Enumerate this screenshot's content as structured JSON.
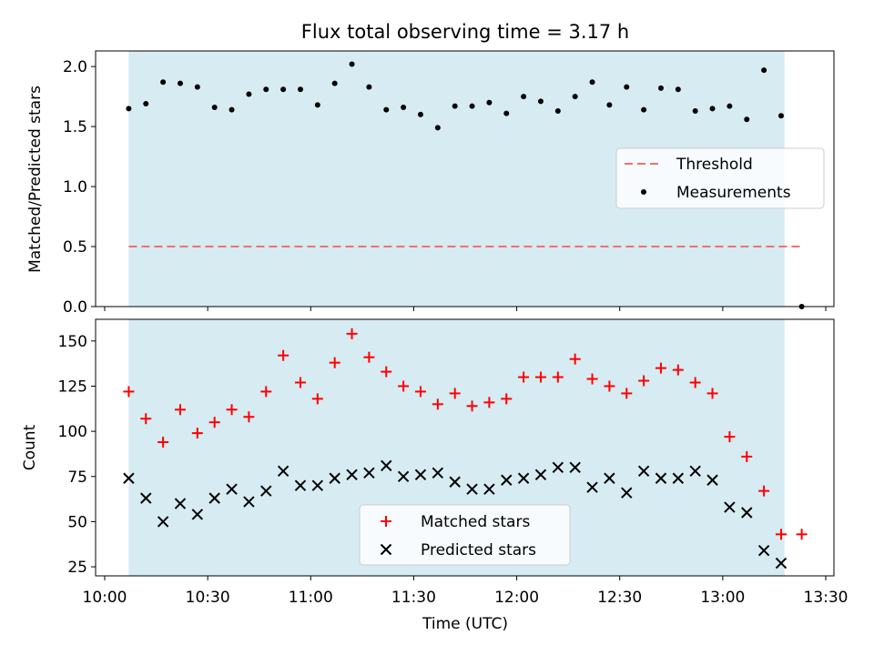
{
  "chart_data": [
    {
      "type": "scatter",
      "title": "Flux total observing time = 3.17 h",
      "xlabel": "",
      "ylabel": "Matched/Predicted stars",
      "ylim": [
        0.0,
        2.13
      ],
      "yticks": [
        0.0,
        0.5,
        1.0,
        1.5,
        2.0
      ],
      "ytick_labels": [
        "0.0",
        "0.5",
        "1.0",
        "1.5",
        "2.0"
      ],
      "x_time_range": [
        "10:00",
        "13:30"
      ],
      "shaded_span": {
        "start": "10:07",
        "end": "13:18",
        "color": "#add8e6"
      },
      "threshold": {
        "name": "Threshold",
        "value": 0.5,
        "x_start": "10:07",
        "x_end": "13:23",
        "color": "#f07070",
        "style": "dashed"
      },
      "series": [
        {
          "name": "Measurements",
          "color": "#000000",
          "marker": "dot",
          "x": [
            "10:07",
            "10:12",
            "10:17",
            "10:22",
            "10:27",
            "10:32",
            "10:37",
            "10:42",
            "10:47",
            "10:52",
            "10:57",
            "11:02",
            "11:07",
            "11:12",
            "11:17",
            "11:22",
            "11:27",
            "11:32",
            "11:37",
            "11:42",
            "11:47",
            "11:52",
            "11:57",
            "12:02",
            "12:07",
            "12:12",
            "12:17",
            "12:22",
            "12:27",
            "12:32",
            "12:37",
            "12:42",
            "12:47",
            "12:52",
            "12:57",
            "13:02",
            "13:07",
            "13:12",
            "13:17",
            "13:23"
          ],
          "values": [
            1.65,
            1.69,
            1.87,
            1.86,
            1.83,
            1.66,
            1.64,
            1.77,
            1.81,
            1.81,
            1.81,
            1.68,
            1.86,
            2.02,
            1.83,
            1.64,
            1.66,
            1.6,
            1.49,
            1.67,
            1.67,
            1.7,
            1.61,
            1.75,
            1.71,
            1.63,
            1.75,
            1.87,
            1.68,
            1.83,
            1.64,
            1.82,
            1.81,
            1.63,
            1.65,
            1.67,
            1.56,
            1.97,
            1.59,
            0.0
          ]
        }
      ],
      "legend": {
        "position": "center-right",
        "entries": [
          "Threshold",
          "Measurements"
        ]
      }
    },
    {
      "type": "scatter",
      "title": "",
      "xlabel": "Time (UTC)",
      "ylabel": "Count",
      "ylim": [
        20,
        162
      ],
      "yticks": [
        25,
        50,
        75,
        100,
        125,
        150
      ],
      "ytick_labels": [
        "25",
        "50",
        "75",
        "100",
        "125",
        "150"
      ],
      "xticks": [
        "10:00",
        "10:30",
        "11:00",
        "11:30",
        "12:00",
        "12:30",
        "13:00",
        "13:30"
      ],
      "x_time_range": [
        "10:00",
        "13:30"
      ],
      "shaded_span": {
        "start": "10:07",
        "end": "13:18",
        "color": "#add8e6"
      },
      "series": [
        {
          "name": "Matched stars",
          "color": "#ff0000",
          "marker": "plus",
          "x": [
            "10:07",
            "10:12",
            "10:17",
            "10:22",
            "10:27",
            "10:32",
            "10:37",
            "10:42",
            "10:47",
            "10:52",
            "10:57",
            "11:02",
            "11:07",
            "11:12",
            "11:17",
            "11:22",
            "11:27",
            "11:32",
            "11:37",
            "11:42",
            "11:47",
            "11:52",
            "11:57",
            "12:02",
            "12:07",
            "12:12",
            "12:17",
            "12:22",
            "12:27",
            "12:32",
            "12:37",
            "12:42",
            "12:47",
            "12:52",
            "12:57",
            "13:02",
            "13:07",
            "13:12",
            "13:17",
            "13:23"
          ],
          "values": [
            122,
            107,
            94,
            112,
            99,
            105,
            112,
            108,
            122,
            142,
            127,
            118,
            138,
            154,
            141,
            133,
            125,
            122,
            115,
            121,
            114,
            116,
            118,
            130,
            130,
            130,
            140,
            129,
            125,
            121,
            128,
            135,
            134,
            127,
            121,
            97,
            86,
            67,
            43,
            43
          ]
        },
        {
          "name": "Predicted stars",
          "color": "#000000",
          "marker": "x",
          "x": [
            "10:07",
            "10:12",
            "10:17",
            "10:22",
            "10:27",
            "10:32",
            "10:37",
            "10:42",
            "10:47",
            "10:52",
            "10:57",
            "11:02",
            "11:07",
            "11:12",
            "11:17",
            "11:22",
            "11:27",
            "11:32",
            "11:37",
            "11:42",
            "11:47",
            "11:52",
            "11:57",
            "12:02",
            "12:07",
            "12:12",
            "12:17",
            "12:22",
            "12:27",
            "12:32",
            "12:37",
            "12:42",
            "12:47",
            "12:52",
            "12:57",
            "13:02",
            "13:07",
            "13:12",
            "13:17"
          ],
          "values": [
            74,
            63,
            50,
            60,
            54,
            63,
            68,
            61,
            67,
            78,
            70,
            70,
            74,
            76,
            77,
            81,
            75,
            76,
            77,
            72,
            68,
            68,
            73,
            74,
            76,
            80,
            80,
            69,
            74,
            66,
            78,
            74,
            74,
            78,
            73,
            58,
            55,
            34,
            27
          ]
        }
      ],
      "legend": {
        "position": "lower-center",
        "entries": [
          "Matched stars",
          "Predicted stars"
        ]
      }
    }
  ]
}
